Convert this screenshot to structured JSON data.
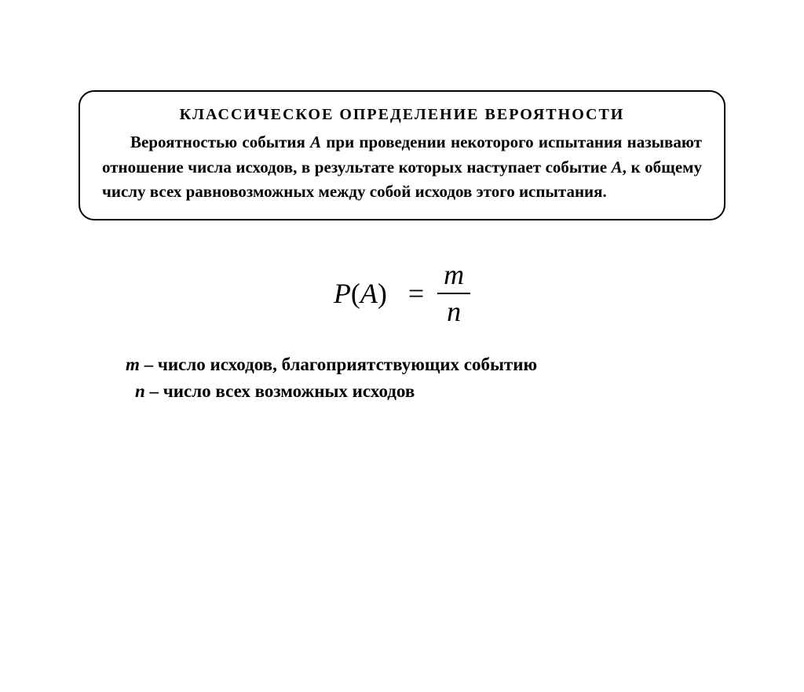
{
  "box": {
    "title": "КЛАССИЧЕСКОЕ  ОПРЕДЕЛЕНИЕ  ВЕРОЯТНОСТИ",
    "body_pre": "Вероятностью события ",
    "body_A1": "A",
    "body_mid1": " при проведении некоторого испытания называют отношение числа исходов, в результате которых наступает событие ",
    "body_A2": "A",
    "body_post": ", к общему числу всех равновозможных между собой исходов этого испытания."
  },
  "formula": {
    "P": "P",
    "open": "(",
    "A": "A",
    "close": ")",
    "eq": "=",
    "num": "m",
    "den": "n"
  },
  "legend": {
    "m_var": "m",
    "m_text": " – число исходов, благоприятствующих событию",
    "n_var": "n",
    "n_text": " – число всех возможных исходов"
  },
  "style": {
    "bg": "#ffffff",
    "fg": "#000000",
    "border_radius": 20,
    "border_width": 2,
    "title_fontsize": 20,
    "body_fontsize": 21,
    "formula_fontsize": 36,
    "legend_fontsize": 23
  }
}
